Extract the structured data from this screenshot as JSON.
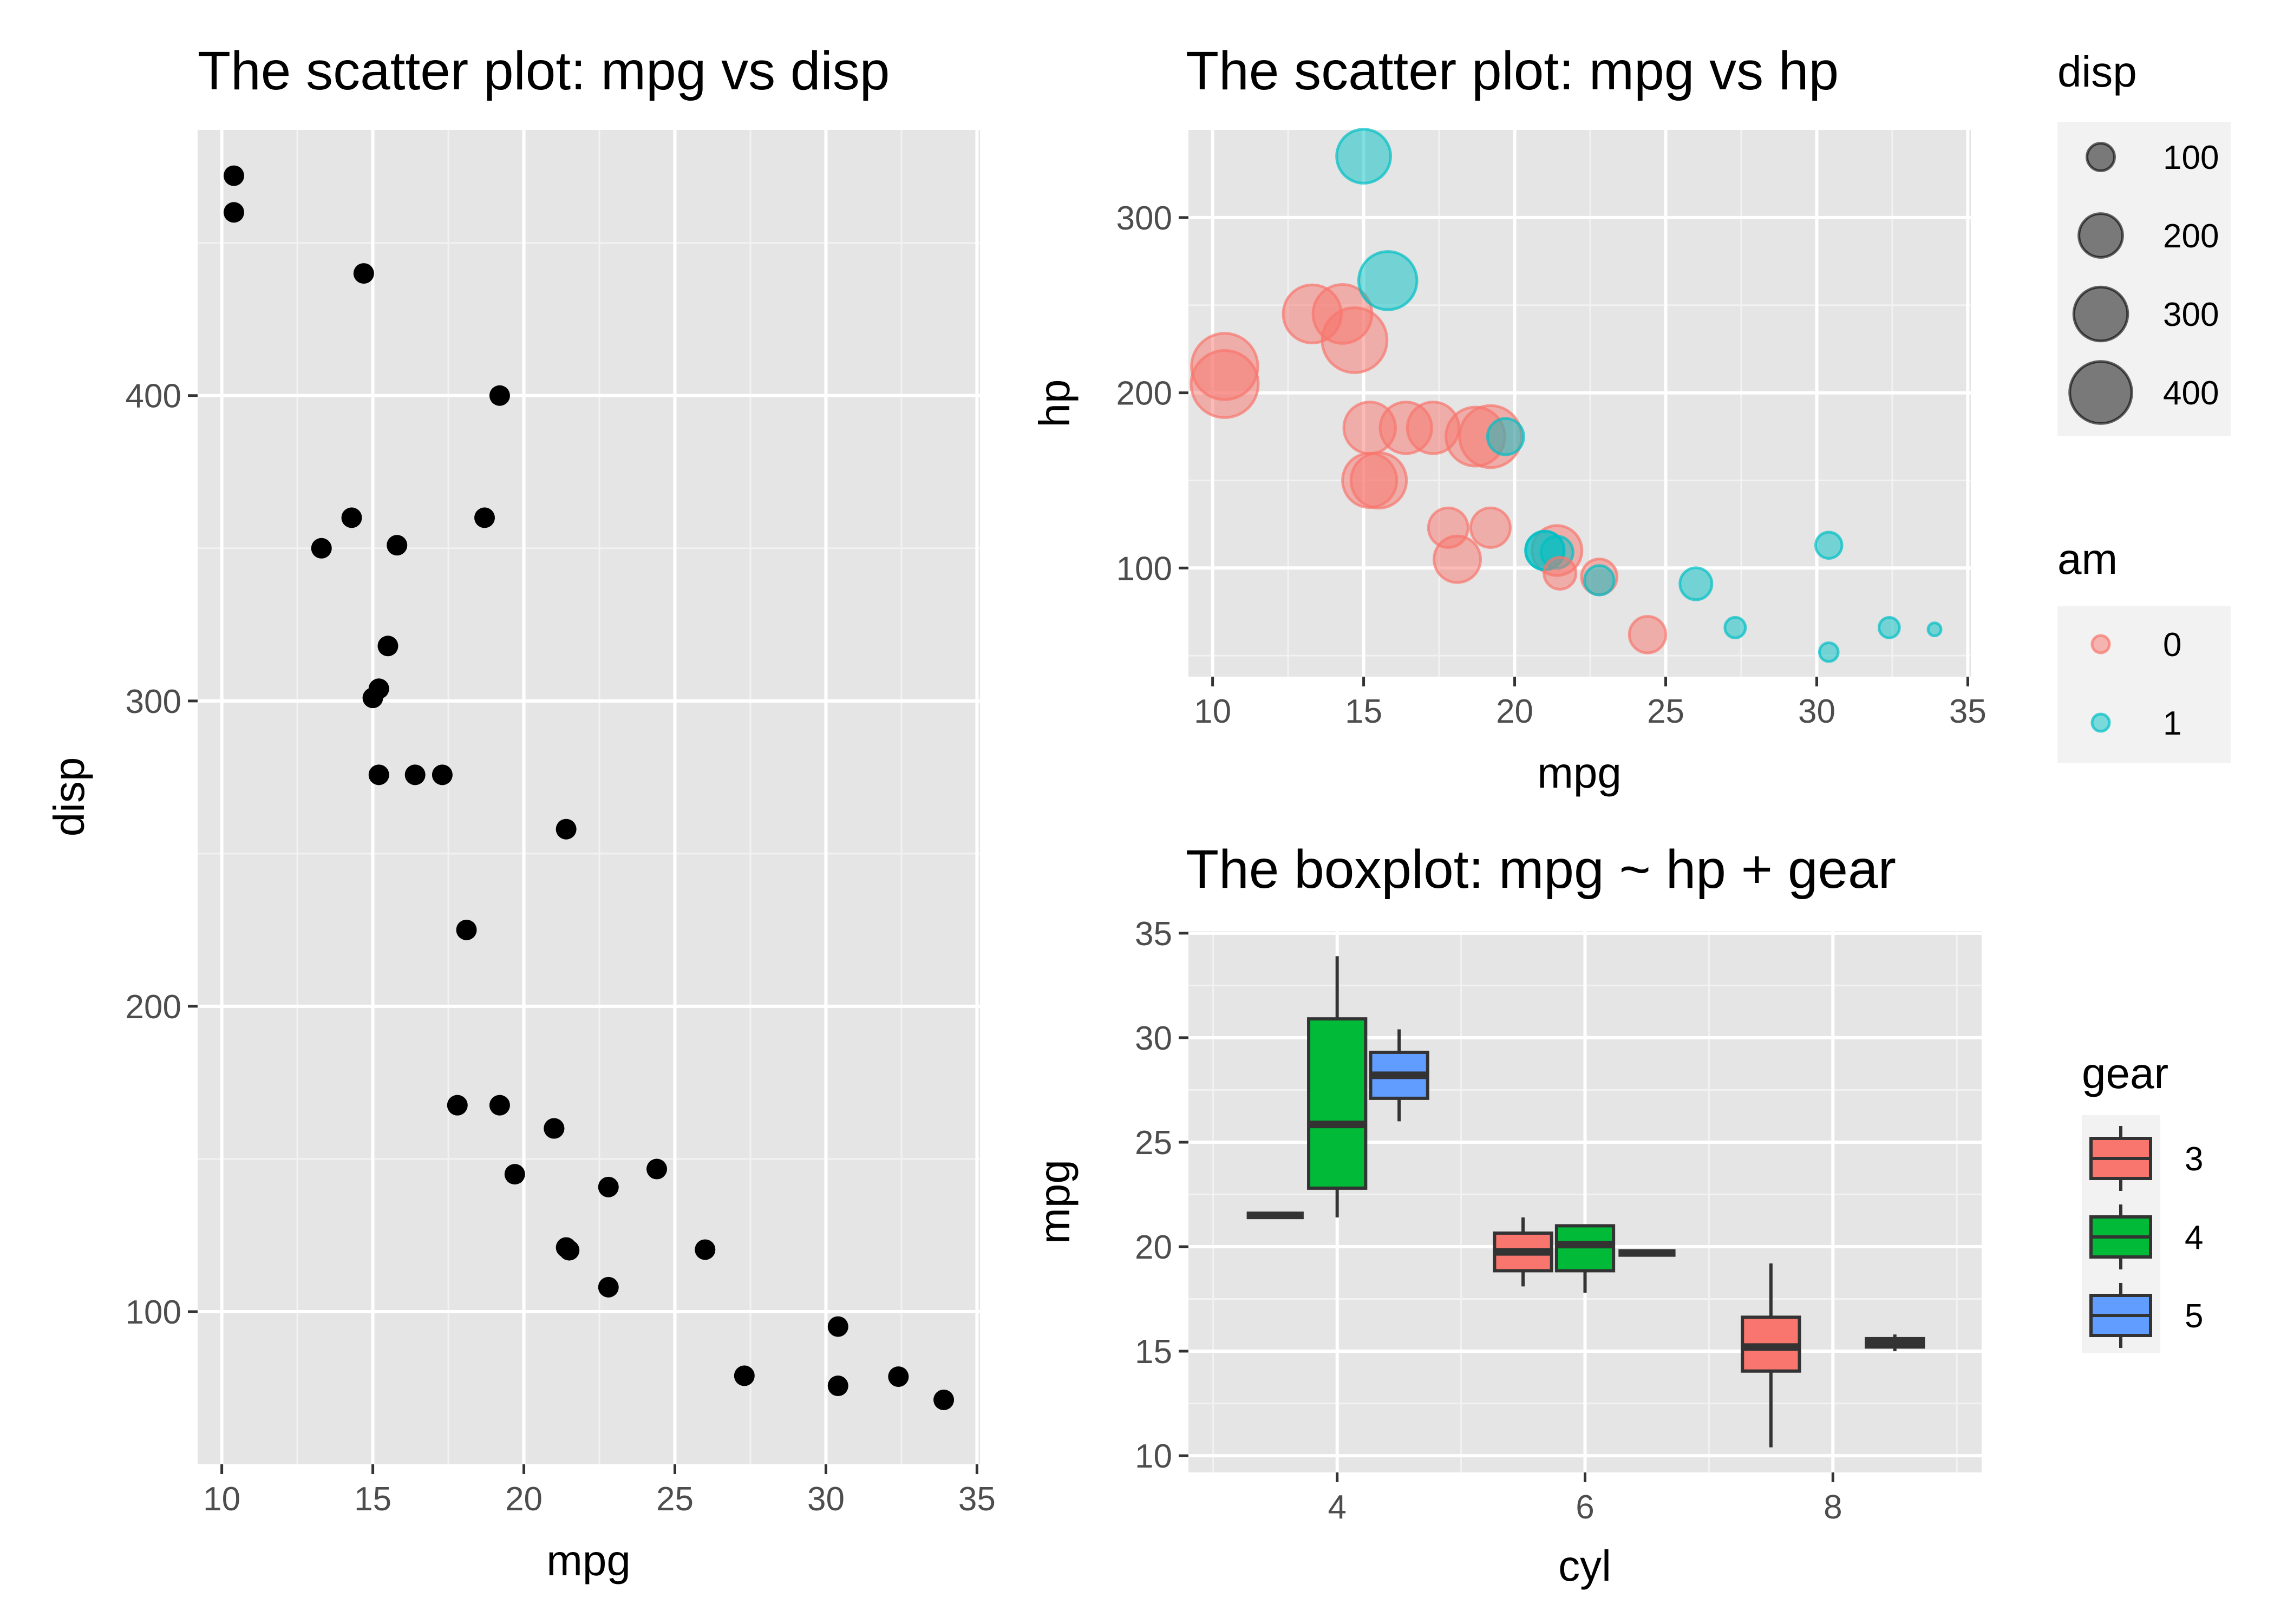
{
  "colors": {
    "panel_bg": "#e5e5e5",
    "grid_major": "#ffffff",
    "grid_minor": "#f2f2f2",
    "axis_text": "#4d4d4d",
    "tick": "#333333",
    "point": "#000000",
    "am0": "#f8766d",
    "am1": "#00bfc4",
    "gear3": "#f8766d",
    "gear4": "#00ba38",
    "gear5": "#619cff",
    "legend_bg": "#f2f2f2"
  },
  "chart_data": [
    {
      "id": "scatter-disp",
      "type": "scatter",
      "title": "The scatter plot: mpg vs disp",
      "xlabel": "mpg",
      "ylabel": "disp",
      "xlim": [
        9.2,
        35.1
      ],
      "ylim": [
        50,
        487
      ],
      "xticks": [
        10,
        15,
        20,
        25,
        30,
        35
      ],
      "xtick_labels": [
        "10",
        "15",
        "20",
        "25",
        "30",
        "35"
      ],
      "yticks": [
        100,
        200,
        300,
        400
      ],
      "ytick_labels": [
        "100",
        "200",
        "300",
        "400"
      ],
      "points": [
        {
          "x": 21.0,
          "y": 160
        },
        {
          "x": 21.0,
          "y": 160
        },
        {
          "x": 22.8,
          "y": 108
        },
        {
          "x": 21.4,
          "y": 258
        },
        {
          "x": 18.7,
          "y": 360
        },
        {
          "x": 18.1,
          "y": 225
        },
        {
          "x": 14.3,
          "y": 360
        },
        {
          "x": 24.4,
          "y": 146.7
        },
        {
          "x": 22.8,
          "y": 140.8
        },
        {
          "x": 19.2,
          "y": 167.6
        },
        {
          "x": 17.8,
          "y": 167.6
        },
        {
          "x": 16.4,
          "y": 275.8
        },
        {
          "x": 17.3,
          "y": 275.8
        },
        {
          "x": 15.2,
          "y": 275.8
        },
        {
          "x": 10.4,
          "y": 472
        },
        {
          "x": 10.4,
          "y": 460
        },
        {
          "x": 14.7,
          "y": 440
        },
        {
          "x": 32.4,
          "y": 78.7
        },
        {
          "x": 30.4,
          "y": 75.7
        },
        {
          "x": 33.9,
          "y": 71.1
        },
        {
          "x": 21.5,
          "y": 120.1
        },
        {
          "x": 15.5,
          "y": 318
        },
        {
          "x": 15.2,
          "y": 304
        },
        {
          "x": 13.3,
          "y": 350
        },
        {
          "x": 19.2,
          "y": 400
        },
        {
          "x": 27.3,
          "y": 79
        },
        {
          "x": 26.0,
          "y": 120.3
        },
        {
          "x": 30.4,
          "y": 95.1
        },
        {
          "x": 15.8,
          "y": 351
        },
        {
          "x": 19.7,
          "y": 145
        },
        {
          "x": 15.0,
          "y": 301
        },
        {
          "x": 21.4,
          "y": 121
        }
      ]
    },
    {
      "id": "scatter-hp",
      "type": "scatter",
      "title": "The scatter plot: mpg vs hp",
      "xlabel": "mpg",
      "ylabel": "hp",
      "xlim": [
        9.2,
        35.1
      ],
      "ylim": [
        38,
        350
      ],
      "xticks": [
        10,
        15,
        20,
        25,
        30,
        35
      ],
      "xtick_labels": [
        "10",
        "15",
        "20",
        "25",
        "30",
        "35"
      ],
      "yticks": [
        100,
        200,
        300
      ],
      "ytick_labels": [
        "100",
        "200",
        "300"
      ],
      "size_by": "disp",
      "color_by": "am",
      "points": [
        {
          "x": 21.0,
          "y": 110,
          "disp": 160,
          "am": "1"
        },
        {
          "x": 21.0,
          "y": 110,
          "disp": 160,
          "am": "1"
        },
        {
          "x": 22.8,
          "y": 93,
          "disp": 108,
          "am": "1"
        },
        {
          "x": 21.4,
          "y": 110,
          "disp": 258,
          "am": "0"
        },
        {
          "x": 18.7,
          "y": 175,
          "disp": 360,
          "am": "0"
        },
        {
          "x": 18.1,
          "y": 105,
          "disp": 225,
          "am": "0"
        },
        {
          "x": 14.3,
          "y": 245,
          "disp": 360,
          "am": "0"
        },
        {
          "x": 24.4,
          "y": 62,
          "disp": 146.7,
          "am": "0"
        },
        {
          "x": 22.8,
          "y": 95,
          "disp": 140.8,
          "am": "0"
        },
        {
          "x": 19.2,
          "y": 123,
          "disp": 167.6,
          "am": "0"
        },
        {
          "x": 17.8,
          "y": 123,
          "disp": 167.6,
          "am": "0"
        },
        {
          "x": 16.4,
          "y": 180,
          "disp": 275.8,
          "am": "0"
        },
        {
          "x": 17.3,
          "y": 180,
          "disp": 275.8,
          "am": "0"
        },
        {
          "x": 15.2,
          "y": 180,
          "disp": 275.8,
          "am": "0"
        },
        {
          "x": 10.4,
          "y": 205,
          "disp": 472,
          "am": "0"
        },
        {
          "x": 10.4,
          "y": 215,
          "disp": 460,
          "am": "0"
        },
        {
          "x": 14.7,
          "y": 230,
          "disp": 440,
          "am": "0"
        },
        {
          "x": 32.4,
          "y": 66,
          "disp": 78.7,
          "am": "1"
        },
        {
          "x": 30.4,
          "y": 52,
          "disp": 75.7,
          "am": "1"
        },
        {
          "x": 33.9,
          "y": 65,
          "disp": 71.1,
          "am": "1"
        },
        {
          "x": 21.5,
          "y": 97,
          "disp": 120.1,
          "am": "0"
        },
        {
          "x": 15.5,
          "y": 150,
          "disp": 318,
          "am": "0"
        },
        {
          "x": 15.2,
          "y": 150,
          "disp": 304,
          "am": "0"
        },
        {
          "x": 13.3,
          "y": 245,
          "disp": 350,
          "am": "0"
        },
        {
          "x": 19.2,
          "y": 175,
          "disp": 400,
          "am": "0"
        },
        {
          "x": 27.3,
          "y": 66,
          "disp": 79,
          "am": "1"
        },
        {
          "x": 26.0,
          "y": 91,
          "disp": 120.3,
          "am": "1"
        },
        {
          "x": 30.4,
          "y": 113,
          "disp": 95.1,
          "am": "1"
        },
        {
          "x": 15.8,
          "y": 264,
          "disp": 351,
          "am": "1"
        },
        {
          "x": 19.7,
          "y": 175,
          "disp": 145,
          "am": "1"
        },
        {
          "x": 15.0,
          "y": 335,
          "disp": 301,
          "am": "1"
        },
        {
          "x": 21.4,
          "y": 109,
          "disp": 121,
          "am": "1"
        }
      ]
    },
    {
      "id": "boxplot",
      "type": "box",
      "title": "The boxplot: mpg ~ hp + gear",
      "xlabel": "cyl",
      "ylabel": "mpg",
      "xlim": [
        2.8,
        9.2
      ],
      "ylim": [
        9.2,
        35.1
      ],
      "xticks": [
        4,
        6,
        8
      ],
      "xtick_labels": [
        "4",
        "6",
        "8"
      ],
      "yticks": [
        10,
        15,
        20,
        25,
        30,
        35
      ],
      "ytick_labels": [
        "10",
        "15",
        "20",
        "25",
        "30",
        "35"
      ],
      "boxes": [
        {
          "cyl": 4,
          "gear": "3",
          "min": 21.5,
          "q1": 21.5,
          "median": 21.5,
          "q3": 21.5,
          "max": 21.5
        },
        {
          "cyl": 4,
          "gear": "4",
          "min": 21.4,
          "q1": 22.8,
          "median": 25.85,
          "q3": 30.9,
          "max": 33.9
        },
        {
          "cyl": 4,
          "gear": "5",
          "min": 26.0,
          "q1": 27.1,
          "median": 28.2,
          "q3": 29.3,
          "max": 30.4
        },
        {
          "cyl": 6,
          "gear": "3",
          "min": 18.1,
          "q1": 18.85,
          "median": 19.75,
          "q3": 20.65,
          "max": 21.4
        },
        {
          "cyl": 6,
          "gear": "4",
          "min": 17.8,
          "q1": 18.85,
          "median": 20.1,
          "q3": 21.0,
          "max": 21.0
        },
        {
          "cyl": 6,
          "gear": "5",
          "min": 19.7,
          "q1": 19.7,
          "median": 19.7,
          "q3": 19.7,
          "max": 19.7
        },
        {
          "cyl": 8,
          "gear": "3",
          "min": 10.4,
          "q1": 14.05,
          "median": 15.2,
          "q3": 16.625,
          "max": 19.2
        },
        {
          "cyl": 8,
          "gear": "5",
          "min": 15.0,
          "q1": 15.2,
          "median": 15.4,
          "q3": 15.6,
          "max": 15.8
        }
      ]
    }
  ],
  "legends": {
    "disp": {
      "title": "disp",
      "items": [
        {
          "label": "100",
          "value": 100
        },
        {
          "label": "200",
          "value": 200
        },
        {
          "label": "300",
          "value": 300
        },
        {
          "label": "400",
          "value": 400
        }
      ]
    },
    "am": {
      "title": "am",
      "items": [
        {
          "label": "0",
          "key": "am0"
        },
        {
          "label": "1",
          "key": "am1"
        }
      ]
    },
    "gear": {
      "title": "gear",
      "items": [
        {
          "label": "3",
          "key": "gear3"
        },
        {
          "label": "4",
          "key": "gear4"
        },
        {
          "label": "5",
          "key": "gear5"
        }
      ]
    }
  }
}
